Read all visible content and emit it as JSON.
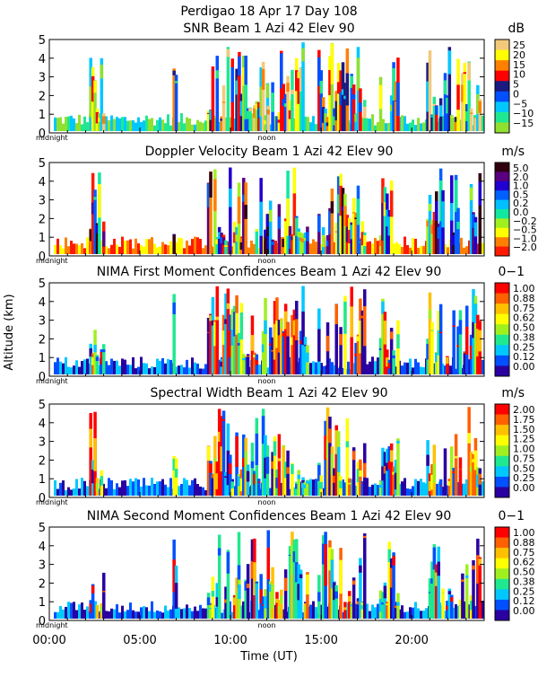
{
  "figure": {
    "title": "Perdigao  18 Apr 17 Day 108",
    "xlabel": "Time (UT)",
    "ylabel": "Altitude (km)",
    "midnight_label": "midnight",
    "noon_label": "noon",
    "x_ticks": [
      "00:00",
      "05:00",
      "10:00",
      "15:00",
      "20:00"
    ],
    "x_tick_hours": [
      0,
      5,
      10,
      15,
      20
    ],
    "y_ticks": [
      "0",
      "1",
      "2",
      "3",
      "4",
      "5"
    ]
  },
  "panels": [
    {
      "title": "SNR Beam 1 Azi  42 Elev 90",
      "unit": "dB",
      "colorbar_labels": [
        "25",
        "20",
        "15",
        "10",
        "5",
        "0",
        "−5",
        "−10",
        "−15"
      ],
      "colors": [
        "#f4c87a",
        "#ffff00",
        "#ff8000",
        "#ff0000",
        "#1a1a80",
        "#0050ff",
        "#00c8ff",
        "#20e890",
        "#90e030"
      ]
    },
    {
      "title": "Doppler Velocity Beam 1 Azi  42 Elev 90",
      "unit": "m/s",
      "colorbar_labels": [
        "5.0",
        "2.0",
        "1.0",
        "0.5",
        "0.2",
        "0.0",
        "−0.2",
        "−0.5",
        "−1.0",
        "−2.0"
      ],
      "colors": [
        "#300010",
        "#5a0080",
        "#2000d0",
        "#0060ff",
        "#00c0ff",
        "#10e8a0",
        "#a0f020",
        "#ffff00",
        "#ff8000",
        "#ff1a00"
      ]
    },
    {
      "title": "NIMA First Moment Confidences Beam 1 Azi  42 Elev 90",
      "unit": "0−1",
      "colorbar_labels": [
        "1.00",
        "0.88",
        "0.75",
        "0.62",
        "0.50",
        "0.38",
        "0.25",
        "0.12",
        "0.00"
      ],
      "colors": [
        "#ff0000",
        "#ff6000",
        "#ffc000",
        "#ffff00",
        "#a0f020",
        "#20e890",
        "#00c8ff",
        "#0050ff",
        "#2a00a0"
      ]
    },
    {
      "title": "Spectral Width Beam 1 Azi  42 Elev 90",
      "unit": "m/s",
      "colorbar_labels": [
        "2.00",
        "1.75",
        "1.50",
        "1.25",
        "1.00",
        "0.75",
        "0.50",
        "0.25",
        "0.00"
      ],
      "colors": [
        "#ff0000",
        "#ff6000",
        "#ffc000",
        "#ffff00",
        "#a0f020",
        "#20e890",
        "#00c8ff",
        "#0050ff",
        "#2a00a0"
      ]
    },
    {
      "title": "NIMA Second Moment Confidences Beam 1 Azi  42 Elev 90",
      "unit": "0−1",
      "colorbar_labels": [
        "1.00",
        "0.88",
        "0.75",
        "0.62",
        "0.50",
        "0.38",
        "0.25",
        "0.12",
        "0.00"
      ],
      "colors": [
        "#ff0000",
        "#ff6000",
        "#ffc000",
        "#ffff00",
        "#a0f020",
        "#20e890",
        "#00c8ff",
        "#0050ff",
        "#2a00a0"
      ]
    }
  ],
  "chart_data": [
    {
      "type": "heatmap",
      "title": "SNR Beam 1 Azi  42 Elev 90",
      "xlabel": "Time (UT)",
      "ylabel": "Altitude (km)",
      "xlim": [
        "00:00",
        "24:00"
      ],
      "ylim": [
        0,
        5
      ],
      "colorbar_unit": "dB",
      "colorbar_range": [
        -15,
        25
      ]
    },
    {
      "type": "heatmap",
      "title": "Doppler Velocity Beam 1 Azi  42 Elev 90",
      "xlabel": "Time (UT)",
      "ylabel": "Altitude (km)",
      "xlim": [
        "00:00",
        "24:00"
      ],
      "ylim": [
        0,
        5
      ],
      "colorbar_unit": "m/s",
      "colorbar_range": [
        -2.0,
        5.0
      ]
    },
    {
      "type": "heatmap",
      "title": "NIMA First Moment Confidences Beam 1 Azi  42 Elev 90",
      "xlabel": "Time (UT)",
      "ylabel": "Altitude (km)",
      "xlim": [
        "00:00",
        "24:00"
      ],
      "ylim": [
        0,
        5
      ],
      "colorbar_unit": "0−1",
      "colorbar_range": [
        0.0,
        1.0
      ]
    },
    {
      "type": "heatmap",
      "title": "Spectral Width Beam 1 Azi  42 Elev 90",
      "xlabel": "Time (UT)",
      "ylabel": "Altitude (km)",
      "xlim": [
        "00:00",
        "24:00"
      ],
      "ylim": [
        0,
        5
      ],
      "colorbar_unit": "m/s",
      "colorbar_range": [
        0.0,
        2.0
      ]
    },
    {
      "type": "heatmap",
      "title": "NIMA Second Moment Confidences Beam 1 Azi  42 Elev 90",
      "xlabel": "Time (UT)",
      "ylabel": "Altitude (km)",
      "xlim": [
        "00:00",
        "24:00"
      ],
      "ylim": [
        0,
        5
      ],
      "colorbar_unit": "0−1",
      "colorbar_range": [
        0.0,
        1.0
      ]
    }
  ]
}
